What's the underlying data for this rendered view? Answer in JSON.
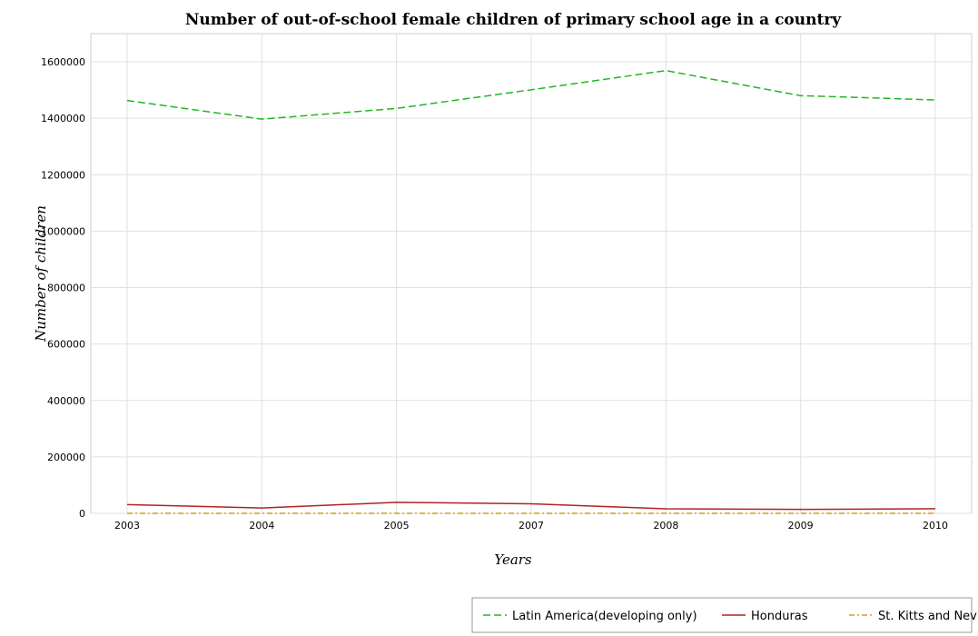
{
  "chart_data": {
    "type": "line",
    "title": "Number of out-of-school female children of primary school age in a country",
    "xlabel": "Years",
    "ylabel": "Number of children",
    "categories": [
      "2003",
      "2004",
      "2005",
      "2007",
      "2008",
      "2009",
      "2010"
    ],
    "ylim": [
      0,
      1700000
    ],
    "yticks": [
      0,
      200000,
      400000,
      600000,
      800000,
      1000000,
      1200000,
      1400000,
      1600000
    ],
    "ytick_labels": [
      "0",
      "200000",
      "400000",
      "600000",
      "800000",
      "1000000",
      "1200000",
      "1400000",
      "1600000"
    ],
    "grid": true,
    "legend_position": "bottom-right",
    "series": [
      {
        "name": "Latin America(developing only)",
        "color": "#22b622",
        "dash": "dashed",
        "values": [
          1463000,
          1397000,
          1435000,
          1501000,
          1569000,
          1480000,
          1465000
        ]
      },
      {
        "name": "Honduras",
        "color": "#b22222",
        "dash": "solid",
        "values": [
          31000,
          19000,
          39000,
          34000,
          16000,
          14000,
          16500
        ]
      },
      {
        "name": "St. Kitts and Nevis",
        "color": "#d4a017",
        "dash": "dashdot",
        "values": [
          50,
          60,
          70,
          40,
          200,
          90,
          80
        ]
      }
    ]
  }
}
